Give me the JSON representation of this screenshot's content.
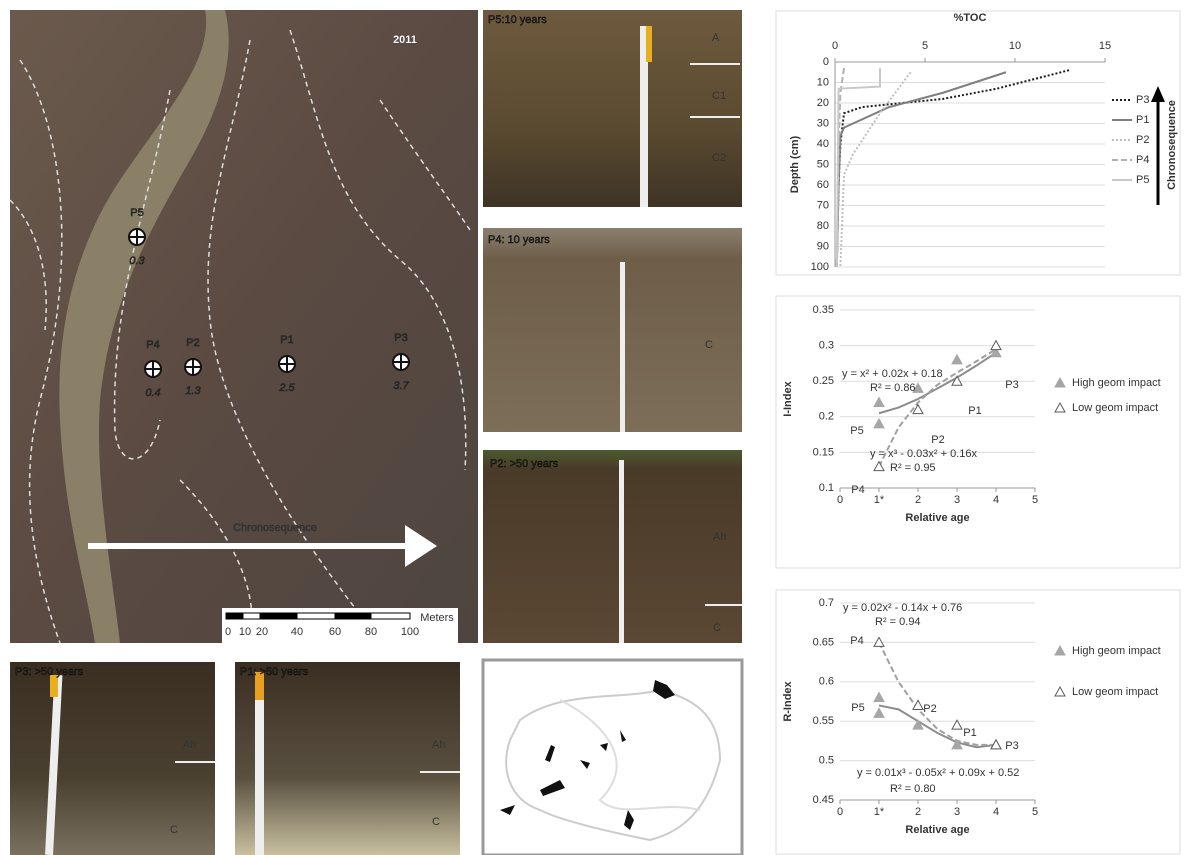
{
  "panels": {
    "map": {
      "year": "2011",
      "sites": [
        {
          "name": "P5",
          "value": "0.3"
        },
        {
          "name": "P4",
          "value": "0.4"
        },
        {
          "name": "P2",
          "value": "1.3"
        },
        {
          "name": "P1",
          "value": "2.5"
        },
        {
          "name": "P3",
          "value": "3.7"
        }
      ],
      "arrow_label": "Chronosequence",
      "scale_unit": "Meters",
      "scale_ticks": [
        "0",
        "10",
        "20",
        "40",
        "60",
        "80",
        "100"
      ]
    },
    "photos": [
      {
        "title": "P5:10 years",
        "horizons": [
          "A",
          "C1",
          "C2"
        ]
      },
      {
        "title": "P4: 10 years",
        "horizons": [
          "C"
        ]
      },
      {
        "title": "P2: >50 years",
        "horizons": [
          "Ah",
          "C"
        ]
      },
      {
        "title": "P3: >50 years",
        "horizons": [
          "Ah",
          "C"
        ]
      },
      {
        "title": "P1: >50 years",
        "horizons": [
          "Ah",
          "C"
        ]
      }
    ]
  },
  "chart_data": [
    {
      "type": "line",
      "title": "%TOC",
      "y_label": "Depth (cm)",
      "side_label": "Chronosequence",
      "xlim": [
        0,
        15
      ],
      "xticks": [
        0,
        5,
        10,
        15
      ],
      "ylim": [
        0,
        100
      ],
      "yticks": [
        0,
        10,
        20,
        30,
        40,
        50,
        60,
        70,
        80,
        90,
        100
      ],
      "y_reversed": true,
      "grid": true,
      "series": [
        {
          "name": "P3",
          "color": "#1a1a1a",
          "style": "dotted",
          "x": [
            13,
            9,
            6,
            1.5,
            0.5,
            0.3,
            0.2,
            0.1
          ],
          "values": [
            4,
            13,
            18,
            22,
            25,
            40,
            60,
            100
          ]
        },
        {
          "name": "P1",
          "color": "#7f7f7f",
          "style": "solid",
          "x": [
            9.5,
            6,
            3,
            0.5,
            0.3,
            0.2,
            0.1
          ],
          "values": [
            5,
            15,
            22,
            32,
            36,
            60,
            100
          ]
        },
        {
          "name": "P2",
          "color": "#bfbfbf",
          "style": "dotted",
          "x": [
            4.2,
            2.5,
            1,
            0.5,
            0.3
          ],
          "values": [
            5,
            25,
            45,
            55,
            100
          ]
        },
        {
          "name": "P4",
          "color": "#b0b0b0",
          "style": "dashed",
          "x": [
            0.5,
            0.3,
            0.2,
            0.1
          ],
          "values": [
            3,
            15,
            40,
            100
          ]
        },
        {
          "name": "P5",
          "color": "#c8c8c8",
          "style": "solid",
          "x": [
            2.5,
            2.5,
            0.2,
            0.1
          ],
          "values": [
            3,
            12,
            13,
            100
          ]
        }
      ]
    },
    {
      "type": "scatter",
      "x_label": "Relative age",
      "y_label": "I-Index",
      "xlim": [
        0,
        5
      ],
      "xticks": [
        0,
        {
          "value": 1,
          "label": "1*"
        },
        2,
        3,
        4,
        5
      ],
      "ylim": [
        0.1,
        0.35
      ],
      "yticks": [
        0.1,
        0.15,
        0.2,
        0.25,
        0.3,
        0.35
      ],
      "series": [
        {
          "name": "High geom impact",
          "color": "#a6a6a6",
          "marker": "filled",
          "x": [
            1,
            1,
            2,
            3,
            4
          ],
          "values": [
            0.22,
            0.19,
            0.24,
            0.28,
            0.29
          ]
        },
        {
          "name": "Low geom impact",
          "color": "#595959",
          "marker": "open",
          "x": [
            1,
            2,
            3,
            4
          ],
          "values": [
            0.13,
            0.21,
            0.25,
            0.3
          ]
        }
      ],
      "trendlines": [
        {
          "style": "solid",
          "color": "#8c8c8c",
          "x": [
            1,
            1.5,
            2,
            2.5,
            3,
            3.5,
            4
          ],
          "values": [
            0.205,
            0.213,
            0.225,
            0.24,
            0.255,
            0.272,
            0.29
          ]
        },
        {
          "style": "dashed",
          "color": "#a0a0a0",
          "x": [
            1,
            1.5,
            2,
            2.5,
            3,
            3.5,
            4
          ],
          "values": [
            0.13,
            0.185,
            0.22,
            0.245,
            0.262,
            0.278,
            0.295
          ]
        }
      ],
      "point_labels": [
        "P5",
        "P4",
        "P2",
        "P1",
        "P3"
      ],
      "equations": [
        "y = x² + 0.02x + 0.18",
        "R² = 0.86",
        "y = x³ - 0.03x² + 0.16x",
        "R² = 0.95"
      ]
    },
    {
      "type": "scatter",
      "x_label": "Relative age",
      "y_label": "R-Index",
      "xlim": [
        0,
        5
      ],
      "xticks": [
        0,
        {
          "value": 1,
          "label": "1*"
        },
        2,
        3,
        4,
        5
      ],
      "ylim": [
        0.45,
        0.7
      ],
      "yticks": [
        0.45,
        0.5,
        0.55,
        0.6,
        0.65,
        0.7
      ],
      "series": [
        {
          "name": "High geom impact",
          "color": "#a6a6a6",
          "marker": "filled",
          "x": [
            1,
            1,
            2,
            2,
            3,
            4
          ],
          "values": [
            0.58,
            0.56,
            0.57,
            0.545,
            0.52,
            0.52
          ]
        },
        {
          "name": "Low geom impact",
          "color": "#595959",
          "marker": "open",
          "x": [
            1,
            2,
            3,
            4
          ],
          "values": [
            0.65,
            0.57,
            0.545,
            0.52
          ]
        }
      ],
      "trendlines": [
        {
          "style": "solid",
          "color": "#8c8c8c",
          "x": [
            1,
            1.5,
            2,
            2.5,
            3,
            3.5,
            4
          ],
          "values": [
            0.57,
            0.565,
            0.55,
            0.535,
            0.523,
            0.517,
            0.52
          ]
        },
        {
          "style": "dashed",
          "color": "#a0a0a0",
          "x": [
            1,
            1.5,
            2,
            2.5,
            3,
            3.5,
            4
          ],
          "values": [
            0.65,
            0.6,
            0.565,
            0.54,
            0.525,
            0.52,
            0.52
          ]
        }
      ],
      "point_labels": [
        "P5",
        "P4",
        "P2",
        "P1",
        "P3"
      ],
      "equations": [
        "y = 0.02x² - 0.14x + 0.76",
        "R² = 0.94",
        "y = 0.01x³ - 0.05x² + 0.09x + 0.52",
        "R² = 0.80"
      ]
    }
  ]
}
